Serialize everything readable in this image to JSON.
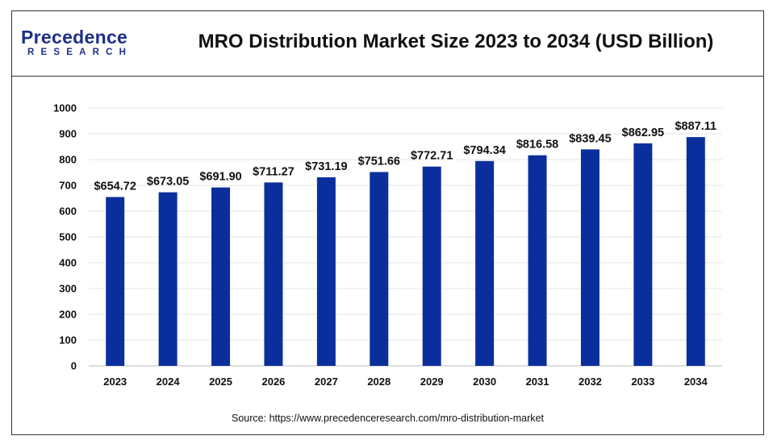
{
  "header": {
    "logo_name": "Precedence",
    "logo_sub": "RESEARCH",
    "title": "MRO Distribution Market Size 2023 to 2034 (USD Billion)"
  },
  "source": "Source: https://www.precedenceresearch.com/mro-distribution-market",
  "colors": {
    "bar": "#0a2f9c",
    "brand": "#1f2f88",
    "grid": "#e4e4e4"
  },
  "chart_data": {
    "type": "bar",
    "title": "MRO Distribution Market Size 2023 to 2034 (USD Billion)",
    "categories": [
      "2023",
      "2024",
      "2025",
      "2026",
      "2027",
      "2028",
      "2029",
      "2030",
      "2031",
      "2032",
      "2033",
      "2034"
    ],
    "values": [
      654.72,
      673.05,
      691.9,
      711.27,
      731.19,
      751.66,
      772.71,
      794.34,
      816.58,
      839.45,
      862.95,
      887.11
    ],
    "data_labels": [
      "$654.72",
      "$673.05",
      "$691.90",
      "$711.27",
      "$731.19",
      "$751.66",
      "$772.71",
      "$794.34",
      "$816.58",
      "$839.45",
      "$862.95",
      "$887.11"
    ],
    "y_ticks": [
      "0",
      "100",
      "200",
      "300",
      "400",
      "500",
      "600",
      "700",
      "800",
      "900",
      "1000"
    ],
    "ylim": [
      0,
      1000
    ],
    "xlabel": "",
    "ylabel": "",
    "grid": true
  }
}
